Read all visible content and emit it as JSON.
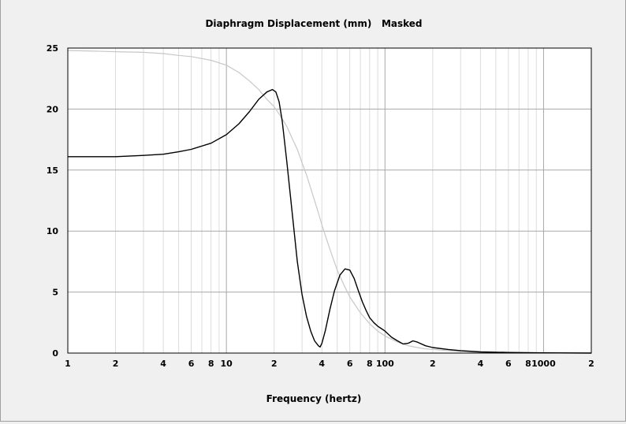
{
  "chart_data": {
    "type": "line",
    "title": "Diaphragm Displacement (mm)   Masked",
    "xlabel": "Frequency (hertz)",
    "ylabel": "",
    "x_scale": "log",
    "xlim": [
      1,
      2000
    ],
    "ylim": [
      0,
      25
    ],
    "grid": true,
    "x_tick_values": [
      1,
      2,
      4,
      6,
      8,
      10,
      20,
      40,
      60,
      80,
      100,
      200,
      400,
      600,
      800,
      1000,
      2000
    ],
    "x_tick_labels": [
      "1",
      "2",
      "4",
      "6",
      "8",
      "10",
      "2",
      "4",
      "6",
      "8",
      "100",
      "2",
      "4",
      "6",
      "8",
      "1000",
      "2"
    ],
    "y_tick_values": [
      0,
      5,
      10,
      15,
      20,
      25
    ],
    "y_tick_labels": [
      "0",
      "5",
      "10",
      "15",
      "20",
      "25"
    ],
    "series": [
      {
        "color": "#000000",
        "x": [
          1,
          2,
          3,
          4,
          5,
          6,
          8,
          10,
          12,
          14,
          16,
          18,
          19.5,
          20.5,
          21.5,
          22.5,
          24,
          26,
          28,
          30,
          32,
          34,
          36,
          38,
          39,
          40,
          42,
          45,
          48,
          52,
          56,
          60,
          64,
          68,
          72,
          76,
          80,
          85,
          90,
          95,
          100,
          110,
          120,
          130,
          140,
          150,
          160,
          180,
          200,
          250,
          300,
          400,
          600,
          1000,
          2000
        ],
        "y": [
          16.1,
          16.1,
          16.2,
          16.3,
          16.5,
          16.7,
          17.2,
          17.9,
          18.8,
          19.8,
          20.8,
          21.4,
          21.6,
          21.4,
          20.6,
          19.0,
          15.8,
          11.5,
          7.5,
          4.8,
          3.0,
          1.8,
          1.0,
          0.6,
          0.5,
          0.8,
          1.8,
          3.6,
          5.1,
          6.4,
          6.9,
          6.8,
          6.1,
          5.1,
          4.2,
          3.5,
          2.9,
          2.5,
          2.2,
          2.0,
          1.8,
          1.3,
          1.0,
          0.75,
          0.8,
          1.0,
          0.9,
          0.6,
          0.45,
          0.3,
          0.2,
          0.1,
          0.05,
          0.02,
          0.0
        ]
      },
      {
        "color": "#c8c8c8",
        "x": [
          1,
          1.5,
          2,
          3,
          4,
          5,
          6,
          8,
          10,
          12,
          14,
          16,
          18,
          20,
          22,
          24,
          26,
          28,
          30,
          32,
          35,
          38,
          40,
          45,
          50,
          55,
          60,
          70,
          80,
          90,
          100,
          120,
          140,
          160,
          180,
          200,
          250,
          300,
          400,
          600,
          1000,
          2000
        ],
        "y": [
          24.8,
          24.75,
          24.7,
          24.65,
          24.55,
          24.4,
          24.3,
          24.0,
          23.6,
          23.0,
          22.3,
          21.6,
          20.8,
          20.2,
          19.4,
          18.6,
          17.6,
          16.7,
          15.6,
          14.6,
          13.0,
          11.5,
          10.5,
          8.5,
          6.8,
          5.6,
          4.6,
          3.3,
          2.4,
          1.8,
          1.4,
          0.9,
          0.6,
          0.45,
          0.35,
          0.3,
          0.2,
          0.12,
          0.06,
          0.03,
          0.01,
          0.0
        ]
      }
    ]
  }
}
